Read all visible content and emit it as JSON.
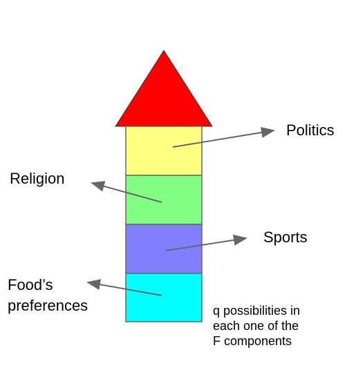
{
  "labels": {
    "politics": "Politics",
    "religion": "Religion",
    "sports": "Sports",
    "food": "Food’s\npreferences",
    "note": "q possibilities in\neach one of the\nF components"
  },
  "colors": {
    "roof": "#ff0000",
    "politics": "#ffff80",
    "religion": "#80ff80",
    "sports": "#8080ff",
    "food": "#00ffff",
    "outline": "#666666",
    "arrow": "#666666"
  }
}
